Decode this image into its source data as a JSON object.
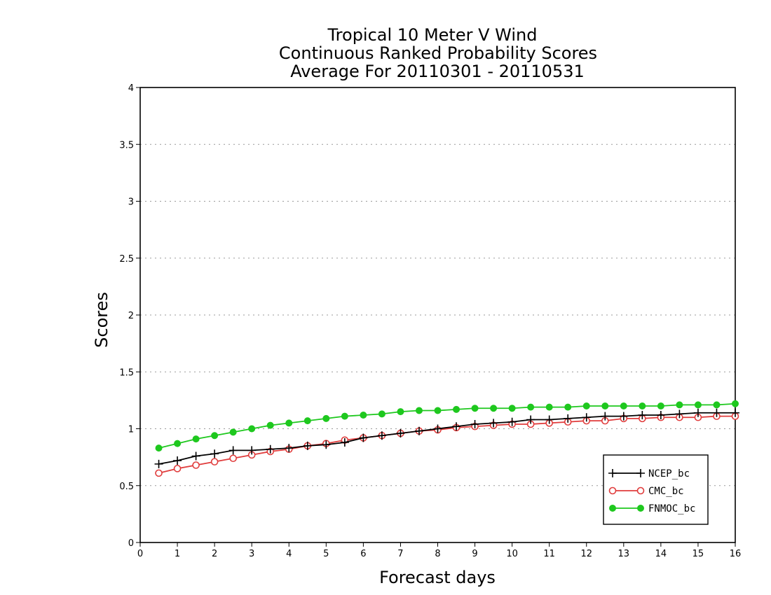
{
  "chart_data": {
    "type": "line",
    "title_lines": [
      "Tropical 10 Meter V Wind",
      "Continuous Ranked Probability Scores",
      "Average For 20110301 - 20110531"
    ],
    "xlabel": "Forecast days",
    "ylabel": "Scores",
    "xlim": [
      0,
      16
    ],
    "ylim": [
      0,
      4
    ],
    "x_ticks": [
      0,
      1,
      2,
      3,
      4,
      5,
      6,
      7,
      8,
      9,
      10,
      11,
      12,
      13,
      14,
      15,
      16
    ],
    "y_ticks": [
      0,
      0.5,
      1,
      1.5,
      2,
      2.5,
      3,
      3.5,
      4
    ],
    "y_tick_labels": [
      "0",
      "0.5",
      "1",
      "1.5",
      "2",
      "2.5",
      "3",
      "3.5",
      "4"
    ],
    "grid": "horizontal dotted",
    "legend_position": "bottom-right",
    "x": [
      0.5,
      1,
      1.5,
      2,
      2.5,
      3,
      3.5,
      4,
      4.5,
      5,
      5.5,
      6,
      6.5,
      7,
      7.5,
      8,
      8.5,
      9,
      9.5,
      10,
      10.5,
      11,
      11.5,
      12,
      12.5,
      13,
      13.5,
      14,
      14.5,
      15,
      15.5,
      16
    ],
    "series": [
      {
        "name": "NCEP_bc",
        "color": "#000000",
        "marker": "plus",
        "values": [
          0.69,
          0.72,
          0.76,
          0.78,
          0.81,
          0.81,
          0.82,
          0.83,
          0.85,
          0.86,
          0.88,
          0.92,
          0.94,
          0.96,
          0.98,
          1.0,
          1.02,
          1.04,
          1.05,
          1.06,
          1.08,
          1.08,
          1.09,
          1.1,
          1.11,
          1.11,
          1.12,
          1.12,
          1.13,
          1.14,
          1.14,
          1.14
        ]
      },
      {
        "name": "CMC_bc",
        "color": "#e03c3c",
        "marker": "open-circle",
        "values": [
          0.61,
          0.65,
          0.68,
          0.71,
          0.74,
          0.77,
          0.8,
          0.82,
          0.85,
          0.87,
          0.9,
          0.92,
          0.94,
          0.96,
          0.98,
          0.99,
          1.01,
          1.02,
          1.03,
          1.04,
          1.04,
          1.05,
          1.06,
          1.07,
          1.07,
          1.09,
          1.09,
          1.1,
          1.1,
          1.1,
          1.11,
          1.11
        ]
      },
      {
        "name": "FNMOC_bc",
        "color": "#1ec81e",
        "marker": "filled-circle",
        "values": [
          0.83,
          0.87,
          0.91,
          0.94,
          0.97,
          1.0,
          1.03,
          1.05,
          1.07,
          1.09,
          1.11,
          1.12,
          1.13,
          1.15,
          1.16,
          1.16,
          1.17,
          1.18,
          1.18,
          1.18,
          1.19,
          1.19,
          1.19,
          1.2,
          1.2,
          1.2,
          1.2,
          1.2,
          1.21,
          1.21,
          1.21,
          1.22
        ]
      }
    ]
  }
}
